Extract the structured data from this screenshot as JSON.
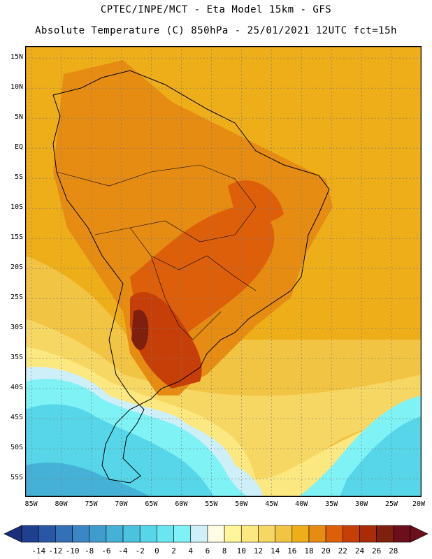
{
  "header": {
    "title_line1": "CPTEC/INPE/MCT -  Eta Model 15km - GFS",
    "title_line2": "Absolute Temperature (C) 850hPa - 25/01/2021 12UTC fct=15h"
  },
  "map": {
    "lat_labels": [
      "15N",
      "10N",
      "5N",
      "EQ",
      "5S",
      "10S",
      "15S",
      "20S",
      "25S",
      "30S",
      "35S",
      "40S",
      "45S",
      "50S",
      "55S"
    ],
    "lat_values": [
      15,
      10,
      5,
      0,
      -5,
      -10,
      -15,
      -20,
      -25,
      -30,
      -35,
      -40,
      -45,
      -50,
      -55
    ],
    "lon_labels": [
      "85W",
      "80W",
      "75W",
      "70W",
      "65W",
      "60W",
      "55W",
      "50W",
      "45W",
      "40W",
      "35W",
      "30W",
      "25W",
      "20W"
    ],
    "lon_values": [
      -85,
      -80,
      -75,
      -70,
      -65,
      -60,
      -55,
      -50,
      -45,
      -40,
      -35,
      -30,
      -25,
      -20
    ],
    "lat_range": [
      -58,
      17
    ],
    "lon_range": [
      -86,
      -20
    ]
  },
  "colorbar": {
    "labels": [
      "-14",
      "-12",
      "-10",
      "-8",
      "-6",
      "-4",
      "-2",
      "0",
      "2",
      "4",
      "6",
      "8",
      "10",
      "12",
      "14",
      "16",
      "18",
      "20",
      "22",
      "24",
      "26",
      "28"
    ],
    "colors": [
      "#1f3f8f",
      "#2a56a6",
      "#3470b8",
      "#3b86c4",
      "#3f9ccd",
      "#46b1d6",
      "#4cc3de",
      "#56d6e8",
      "#6ae6f0",
      "#7ff2f5",
      "#cfeff8",
      "#fffbe4",
      "#fff59a",
      "#fbe881",
      "#f7d764",
      "#f2c444",
      "#eeae1a",
      "#e68c12",
      "#dd5f0a",
      "#c73f08",
      "#a82c08",
      "#7f1f0e",
      "#6b0f1c"
    ],
    "under_color": "#1a2f7a",
    "over_color": "#6b0f1c"
  }
}
